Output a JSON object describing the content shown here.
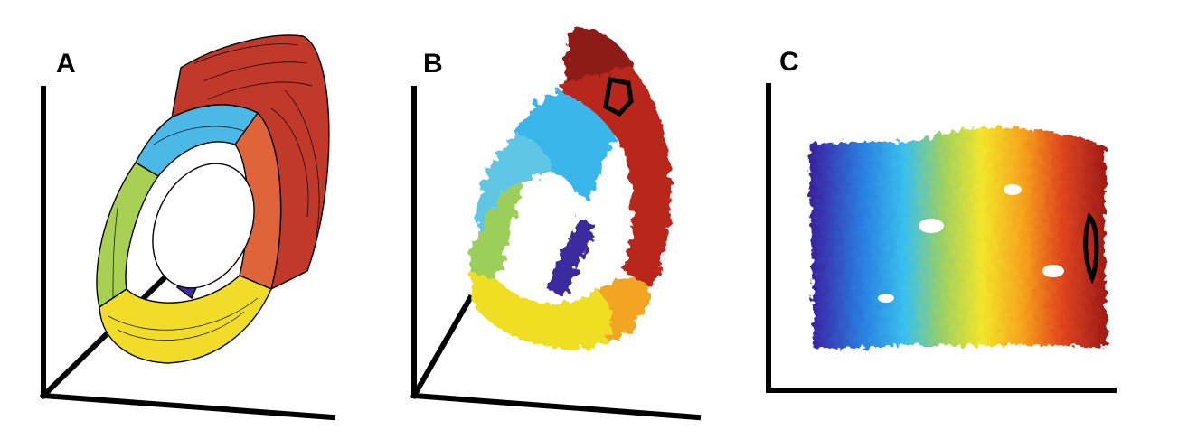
{
  "figure": {
    "panels": [
      {
        "label": "A",
        "depiction": "swiss-roll-mesh"
      },
      {
        "label": "B",
        "depiction": "swiss-roll-point-cloud"
      },
      {
        "label": "C",
        "depiction": "unrolled-embedding"
      }
    ],
    "colormap": [
      "#3a1fa0",
      "#2a7fe0",
      "#38c0ee",
      "#9fd060",
      "#f2e62a",
      "#f6a21e",
      "#e0451e",
      "#9e1a18"
    ],
    "axis_color": "#000000",
    "marker_color": "#000000"
  }
}
